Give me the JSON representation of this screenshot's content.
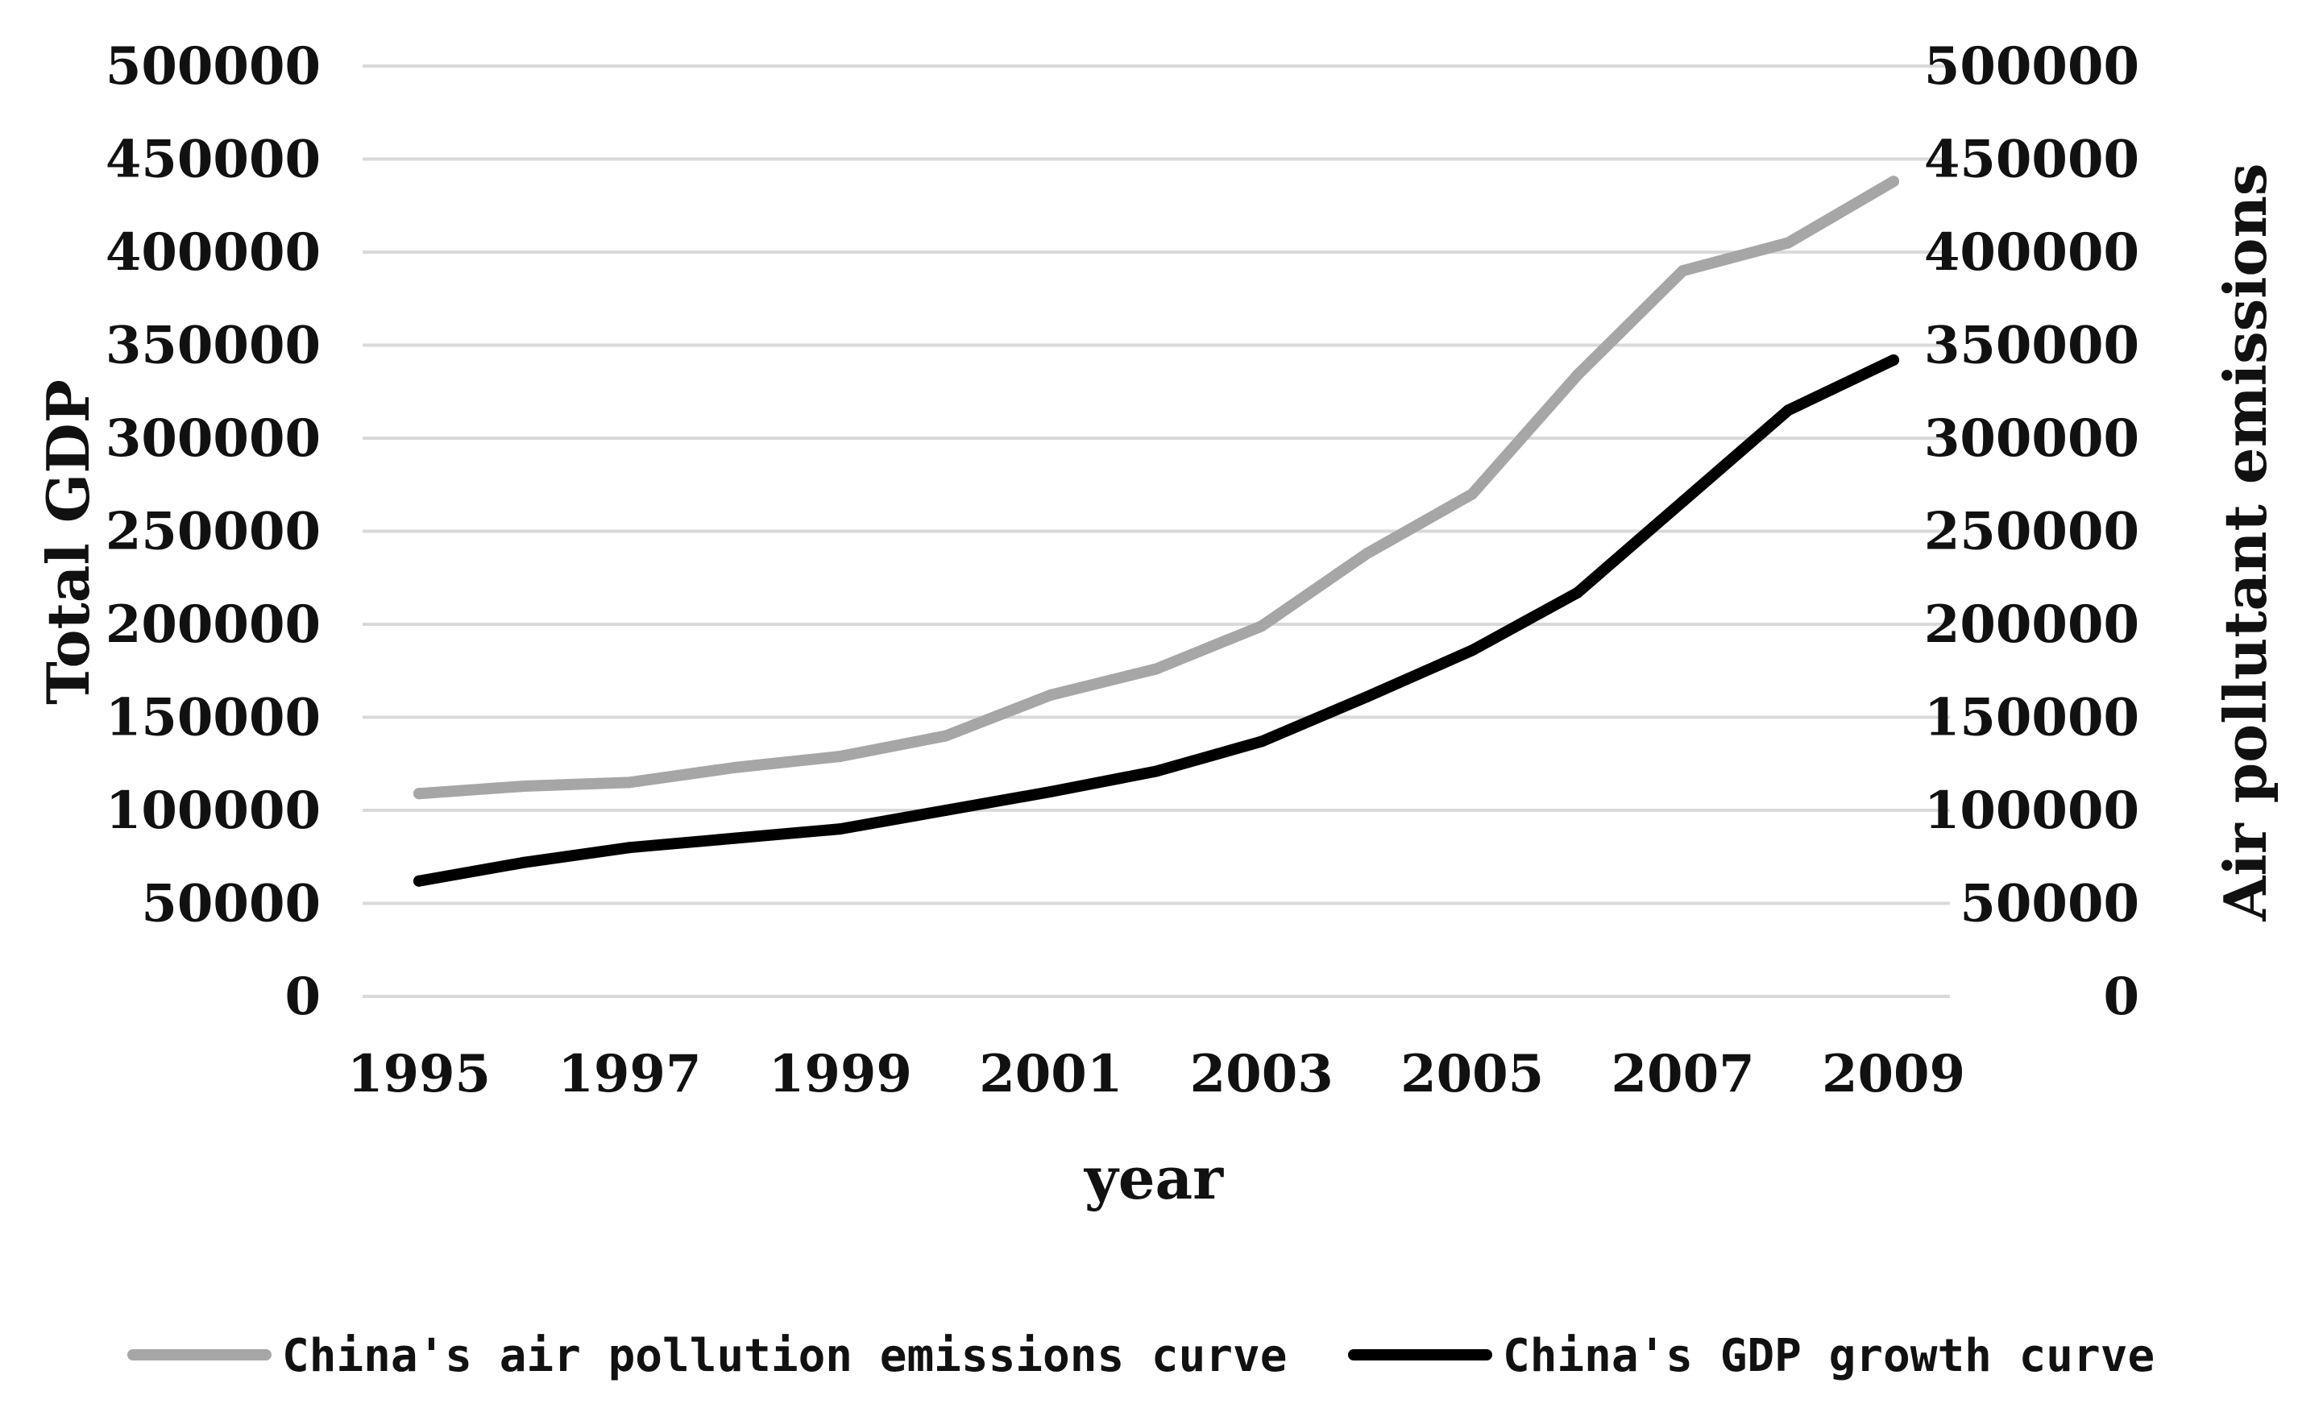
{
  "chart_data": {
    "type": "line",
    "title": "",
    "xlabel": "year",
    "ylabel": "Total GDP",
    "y2label": "Air pollutant emissions",
    "x": [
      1995,
      1996,
      1997,
      1998,
      1999,
      2000,
      2001,
      2002,
      2003,
      2004,
      2005,
      2006,
      2007,
      2008,
      2009
    ],
    "x_tick_labels": [
      "1995",
      "1997",
      "1999",
      "2001",
      "2003",
      "2005",
      "2007",
      "2009"
    ],
    "ylim": [
      0,
      500000
    ],
    "y2lim": [
      0,
      500000
    ],
    "y_tick_labels": [
      "0",
      "50000",
      "100000",
      "150000",
      "200000",
      "250000",
      "300000",
      "350000",
      "400000",
      "450000",
      "500000"
    ],
    "y2_tick_labels": [
      "0",
      "50000",
      "100000",
      "150000",
      "200000",
      "250000",
      "300000",
      "350000",
      "400000",
      "450000",
      "500000"
    ],
    "grid": true,
    "legend_position": "bottom",
    "series": [
      {
        "name": "China's air pollution emissions curve",
        "color": "#a6a6a6",
        "axis": "right",
        "values": [
          109000,
          113000,
          115000,
          123000,
          129000,
          140000,
          162000,
          176000,
          199000,
          238000,
          270000,
          334000,
          390000,
          405000,
          438000
        ]
      },
      {
        "name": "China's GDP growth curve",
        "color": "#000000",
        "axis": "left",
        "values": [
          62000,
          72000,
          80000,
          85000,
          90000,
          100000,
          110000,
          121000,
          137000,
          161000,
          186000,
          217000,
          266000,
          315000,
          342000
        ]
      }
    ]
  }
}
